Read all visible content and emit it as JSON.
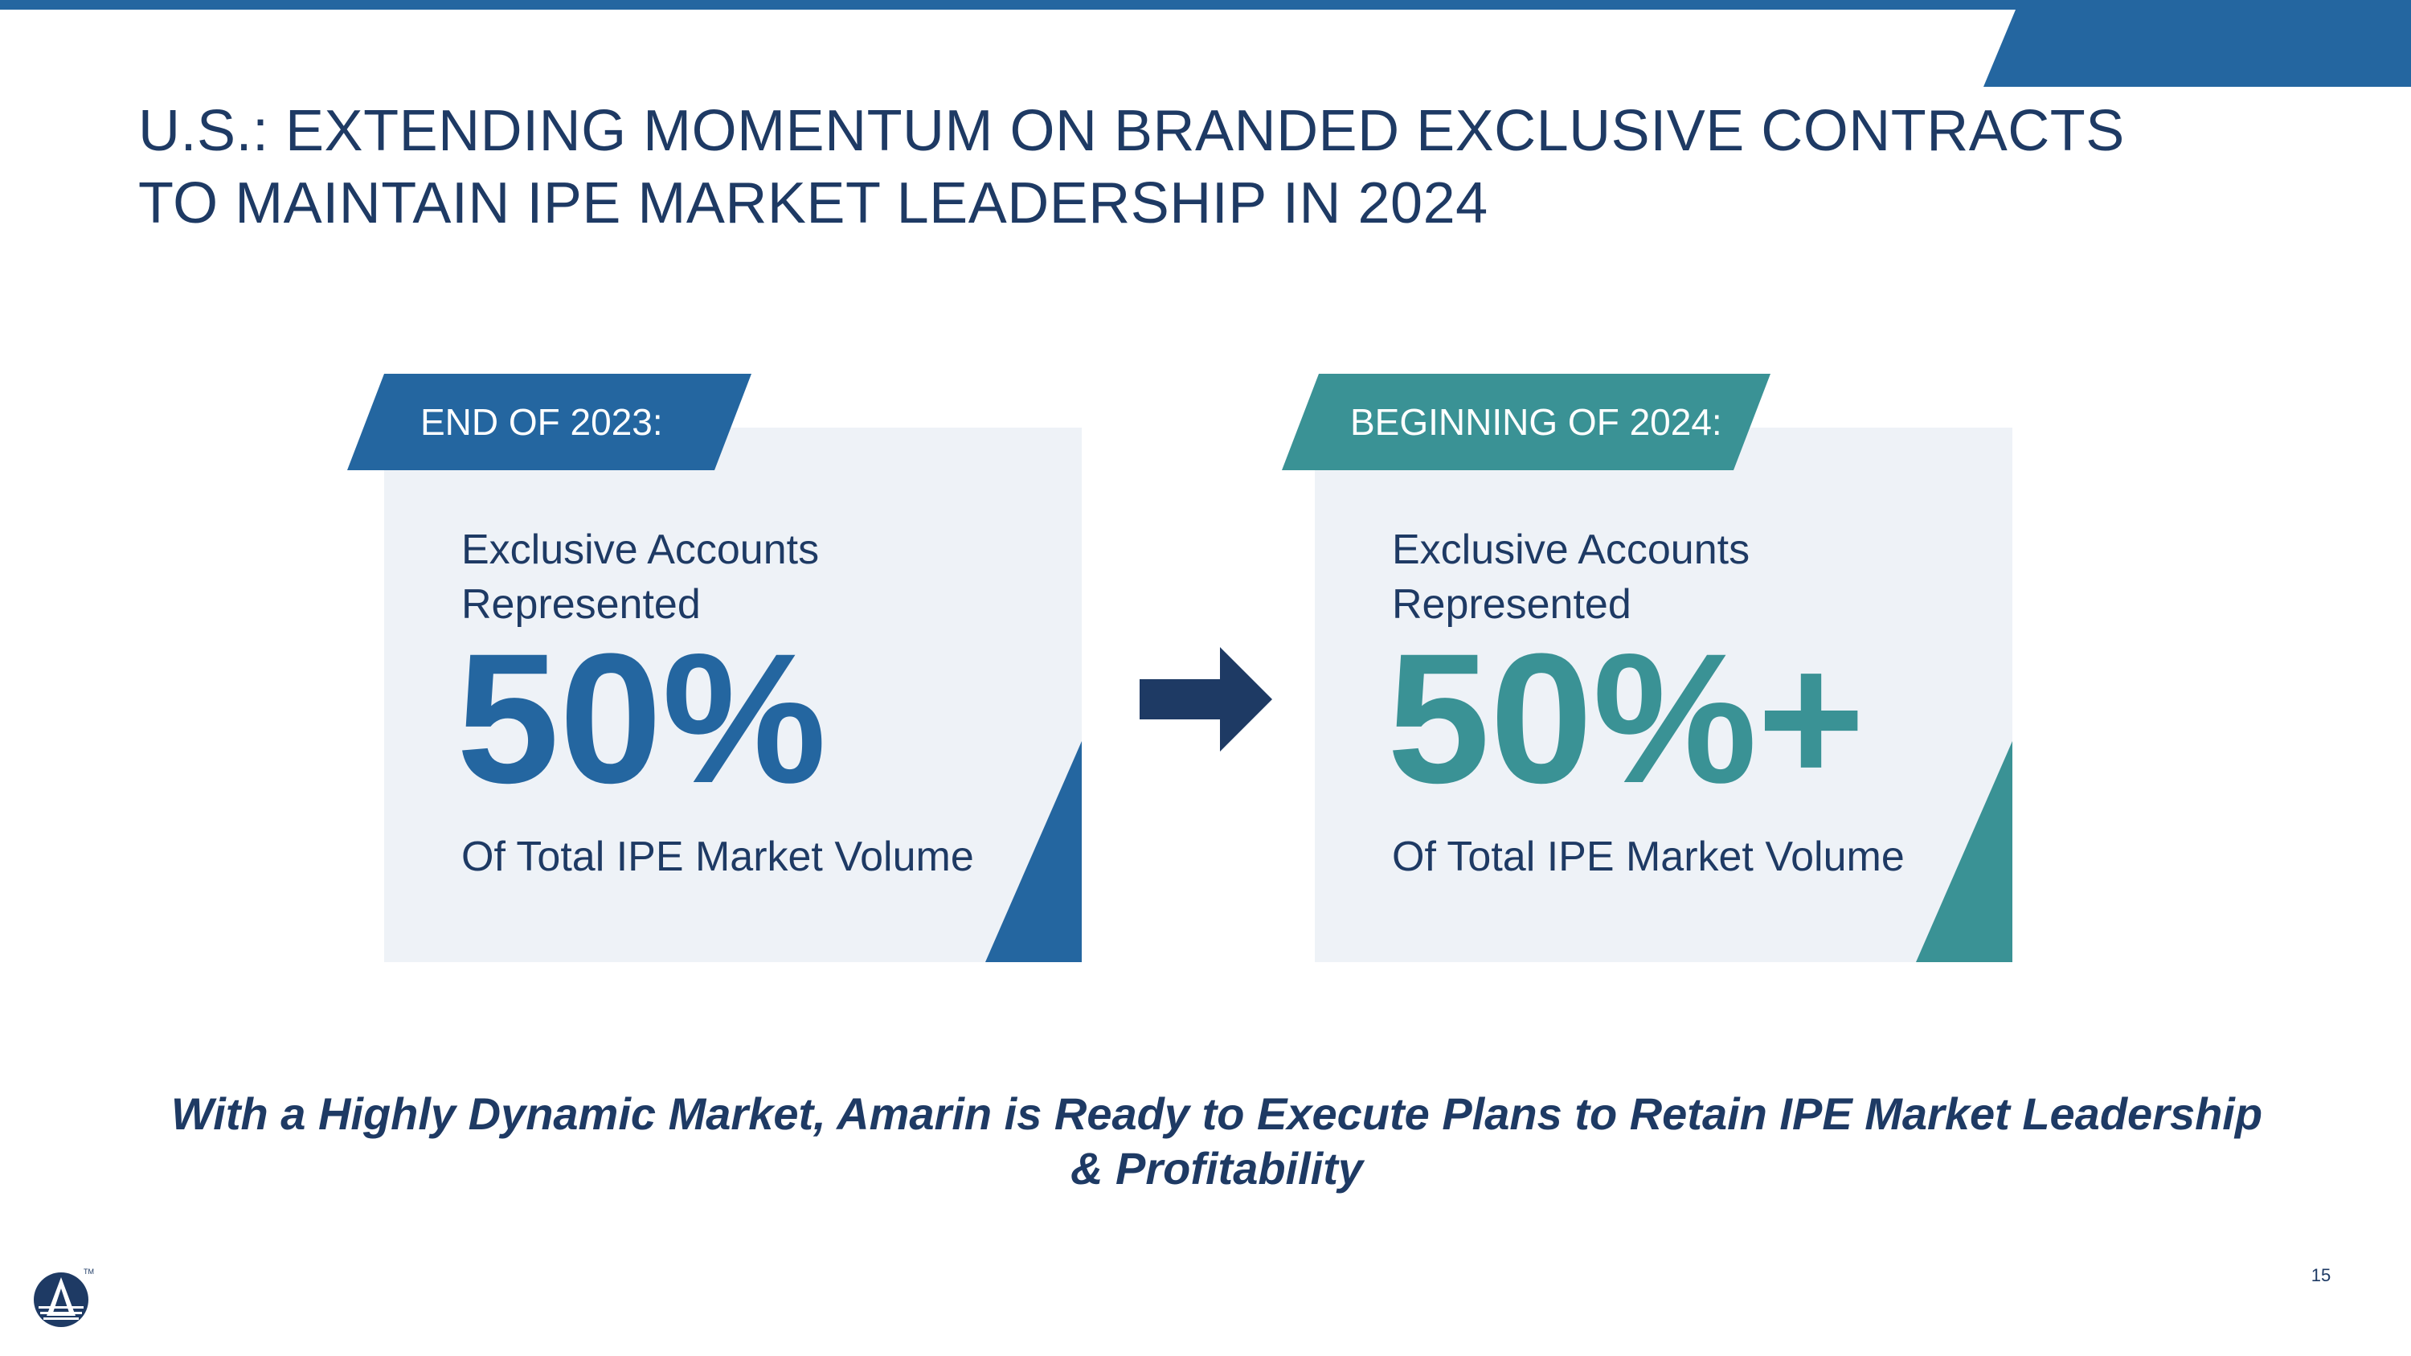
{
  "slide": {
    "title_lines": [
      "U.S.: EXTENDING MOMENTUM ON BRANDED EXCLUSIVE CONTRACTS",
      "TO MAINTAIN IPE MARKET LEADERSHIP IN 2024"
    ],
    "page_number": "15"
  },
  "cards": [
    {
      "tag": "END OF 2023:",
      "subtitle_lines": [
        "Exclusive Accounts",
        "Represented"
      ],
      "value": "50%",
      "caption": "Of Total IPE Market Volume"
    },
    {
      "tag": "BEGINNING OF 2024:",
      "subtitle_lines": [
        "Exclusive Accounts",
        "Represented"
      ],
      "value": "50%+",
      "caption": "Of Total IPE Market Volume"
    }
  ],
  "tagline": "With a Highly Dynamic Market, Amarin is Ready to Execute Plans to Retain IPE Market Leadership & Profitability",
  "logo": {
    "icon": "amarin-logo-icon",
    "mark": "TM"
  },
  "colors": {
    "primary_blue": "#2466a0",
    "teal": "#3a9295",
    "navy": "#1e3a64",
    "card_background": "#eef2f7"
  }
}
